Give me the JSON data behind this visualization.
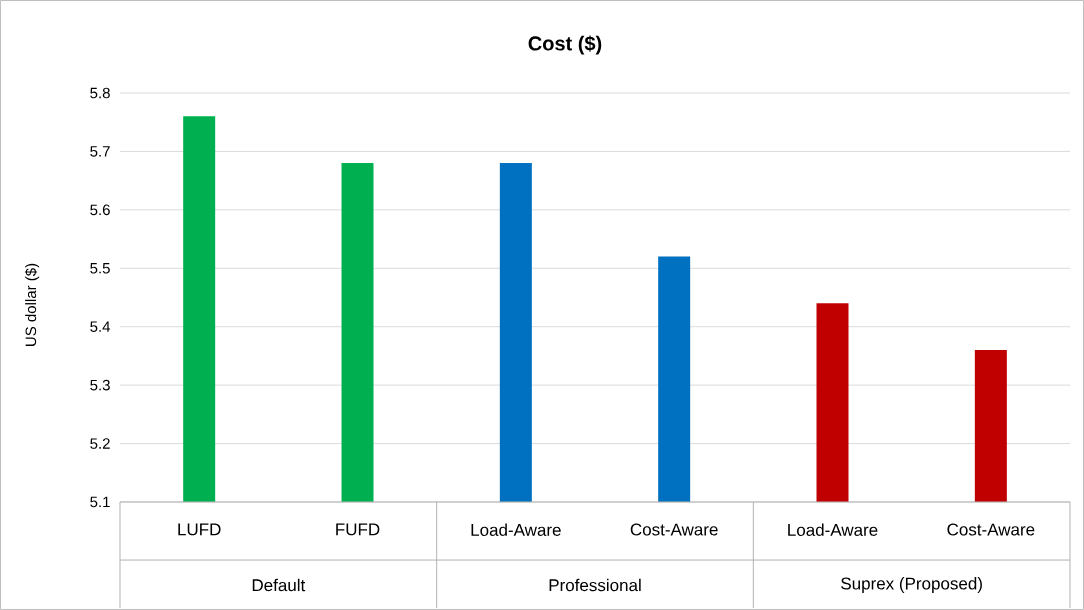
{
  "chart_data": {
    "type": "bar",
    "title": "Cost ($)",
    "ylabel": "US dollar ($)",
    "categories": [
      "LUFD",
      "FUFD",
      "Load-Aware",
      "Cost-Aware",
      "Load-Aware",
      "Cost-Aware"
    ],
    "values": [
      5.76,
      5.68,
      5.68,
      5.52,
      5.44,
      5.36
    ],
    "colors": [
      "#00b050",
      "#00b050",
      "#0070c0",
      "#0070c0",
      "#c00000",
      "#c00000"
    ],
    "ylim": [
      5.1,
      5.8
    ],
    "yticks": [
      5.1,
      5.2,
      5.3,
      5.4,
      5.5,
      5.6,
      5.7,
      5.8
    ],
    "grid": "y",
    "annotations": [
      "Default",
      "Professional",
      "Suprex (Proposed)"
    ]
  }
}
